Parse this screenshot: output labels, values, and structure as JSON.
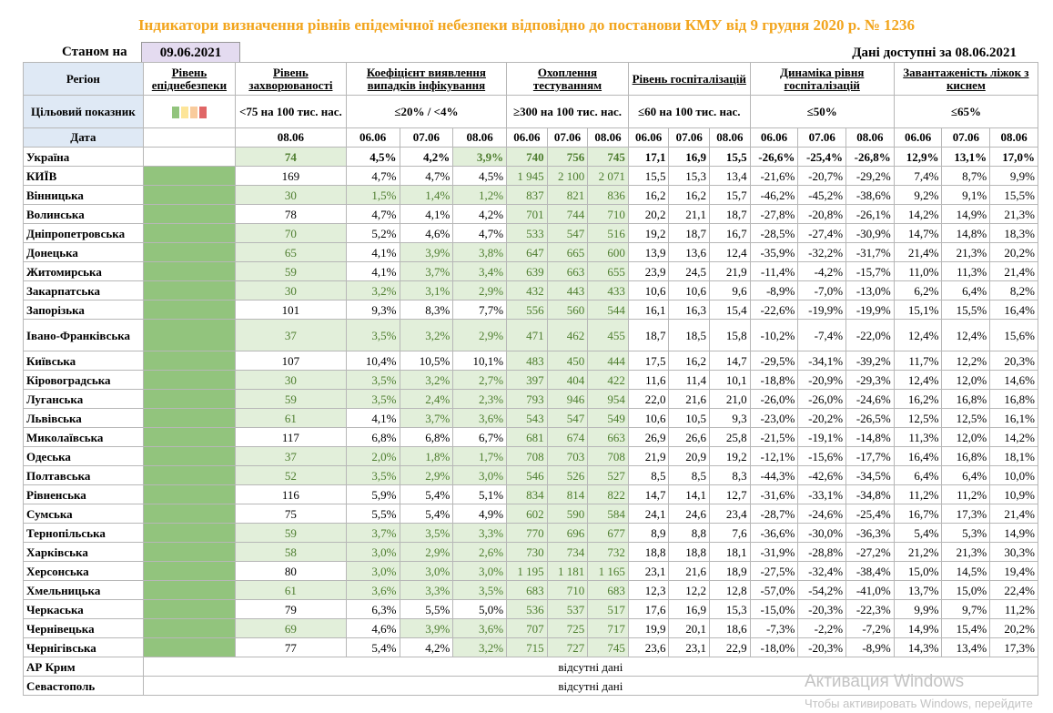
{
  "title": "Індикатори визначення рівнів епідемічної небезпеки відповідно до постанови КМУ від 9 грудня 2020 р. № 1236",
  "as_of_label": "Станом на",
  "as_of_date": "09.06.2021",
  "available_label": "Дані доступні за  08.06.2021",
  "headers": {
    "region": "Регіон",
    "level": "Рівень епіднебезпеки",
    "incidence": "Рівень захворюваності",
    "detection": "Коефіцієнт виявлення випадків інфікування",
    "testing": "Охоплення тестуванням",
    "hosp": "Рівень госпіталізацій",
    "hosp_dyn": "Динаміка рівня госпіталізацій",
    "oxygen": "Завантаженість ліжок з киснем"
  },
  "targets": {
    "label": "Цільовий показник",
    "incidence": "<75 на 100 тис. нас.",
    "detection": "≤20% / <4%",
    "testing": "≥300 на 100 тис. нас.",
    "hosp": "≤60 на 100 тис. нас.",
    "hosp_dyn": "≤50%",
    "oxygen": "≤65%"
  },
  "date_row": {
    "label": "Дата",
    "incidence": "08.06",
    "d1": "06.06",
    "d2": "07.06",
    "d3": "08.06"
  },
  "level_colors": [
    "#92c47d",
    "#fde599",
    "#f9cb9c",
    "#e06666"
  ],
  "rows": [
    {
      "region": "Україна",
      "inc": "74",
      "det": [
        "4,5%",
        "4,2%",
        "3,9%"
      ],
      "test": [
        "740",
        "756",
        "745"
      ],
      "hosp": [
        "17,1",
        "16,9",
        "15,5"
      ],
      "dyn": [
        "-26,6%",
        "-25,4%",
        "-26,8%"
      ],
      "oxy": [
        "12,9%",
        "13,1%",
        "17,0%"
      ]
    },
    {
      "region": "КИЇВ",
      "inc": "169",
      "det": [
        "4,7%",
        "4,7%",
        "4,5%"
      ],
      "test": [
        "1 945",
        "2 100",
        "2 071"
      ],
      "hosp": [
        "15,5",
        "15,3",
        "13,4"
      ],
      "dyn": [
        "-21,6%",
        "-20,7%",
        "-29,2%"
      ],
      "oxy": [
        "7,4%",
        "8,7%",
        "9,9%"
      ]
    },
    {
      "region": "Вінницька",
      "inc": "30",
      "det": [
        "1,5%",
        "1,4%",
        "1,2%"
      ],
      "test": [
        "837",
        "821",
        "836"
      ],
      "hosp": [
        "16,2",
        "16,2",
        "15,7"
      ],
      "dyn": [
        "-46,2%",
        "-45,2%",
        "-38,6%"
      ],
      "oxy": [
        "9,2%",
        "9,1%",
        "15,5%"
      ]
    },
    {
      "region": "Волинська",
      "inc": "78",
      "det": [
        "4,7%",
        "4,1%",
        "4,2%"
      ],
      "test": [
        "701",
        "744",
        "710"
      ],
      "hosp": [
        "20,2",
        "21,1",
        "18,7"
      ],
      "dyn": [
        "-27,8%",
        "-20,8%",
        "-26,1%"
      ],
      "oxy": [
        "14,2%",
        "14,9%",
        "21,3%"
      ]
    },
    {
      "region": "Дніпропетровська",
      "inc": "70",
      "det": [
        "5,2%",
        "4,6%",
        "4,7%"
      ],
      "test": [
        "533",
        "547",
        "516"
      ],
      "hosp": [
        "19,2",
        "18,7",
        "16,7"
      ],
      "dyn": [
        "-28,5%",
        "-27,4%",
        "-30,9%"
      ],
      "oxy": [
        "14,7%",
        "14,8%",
        "18,3%"
      ]
    },
    {
      "region": "Донецька",
      "inc": "65",
      "det": [
        "4,1%",
        "3,9%",
        "3,8%"
      ],
      "test": [
        "647",
        "665",
        "600"
      ],
      "hosp": [
        "13,9",
        "13,6",
        "12,4"
      ],
      "dyn": [
        "-35,9%",
        "-32,2%",
        "-31,7%"
      ],
      "oxy": [
        "21,4%",
        "21,3%",
        "20,2%"
      ]
    },
    {
      "region": "Житомирська",
      "inc": "59",
      "det": [
        "4,1%",
        "3,7%",
        "3,4%"
      ],
      "test": [
        "639",
        "663",
        "655"
      ],
      "hosp": [
        "23,9",
        "24,5",
        "21,9"
      ],
      "dyn": [
        "-11,4%",
        "-4,2%",
        "-15,7%"
      ],
      "oxy": [
        "11,0%",
        "11,3%",
        "21,4%"
      ]
    },
    {
      "region": "Закарпатська",
      "inc": "30",
      "det": [
        "3,2%",
        "3,1%",
        "2,9%"
      ],
      "test": [
        "432",
        "443",
        "433"
      ],
      "hosp": [
        "10,6",
        "10,6",
        "9,6"
      ],
      "dyn": [
        "-8,9%",
        "-7,0%",
        "-13,0%"
      ],
      "oxy": [
        "6,2%",
        "6,4%",
        "8,2%"
      ]
    },
    {
      "region": "Запорізька",
      "inc": "101",
      "det": [
        "9,3%",
        "8,3%",
        "7,7%"
      ],
      "test": [
        "556",
        "560",
        "544"
      ],
      "hosp": [
        "16,1",
        "16,3",
        "15,4"
      ],
      "dyn": [
        "-22,6%",
        "-19,9%",
        "-19,9%"
      ],
      "oxy": [
        "15,1%",
        "15,5%",
        "16,4%"
      ]
    },
    {
      "region": "Івано-Франківська",
      "inc": "37",
      "det": [
        "3,5%",
        "3,2%",
        "2,9%"
      ],
      "test": [
        "471",
        "462",
        "455"
      ],
      "hosp": [
        "18,7",
        "18,5",
        "15,8"
      ],
      "dyn": [
        "-10,2%",
        "-7,4%",
        "-22,0%"
      ],
      "oxy": [
        "12,4%",
        "12,4%",
        "15,6%"
      ]
    },
    {
      "region": "Київська",
      "inc": "107",
      "det": [
        "10,4%",
        "10,5%",
        "10,1%"
      ],
      "test": [
        "483",
        "450",
        "444"
      ],
      "hosp": [
        "17,5",
        "16,2",
        "14,7"
      ],
      "dyn": [
        "-29,5%",
        "-34,1%",
        "-39,2%"
      ],
      "oxy": [
        "11,7%",
        "12,2%",
        "20,3%"
      ]
    },
    {
      "region": "Кіровоградська",
      "inc": "30",
      "det": [
        "3,5%",
        "3,2%",
        "2,7%"
      ],
      "test": [
        "397",
        "404",
        "422"
      ],
      "hosp": [
        "11,6",
        "11,4",
        "10,1"
      ],
      "dyn": [
        "-18,8%",
        "-20,9%",
        "-29,3%"
      ],
      "oxy": [
        "12,4%",
        "12,0%",
        "14,6%"
      ]
    },
    {
      "region": "Луганська",
      "inc": "59",
      "det": [
        "3,5%",
        "2,4%",
        "2,3%"
      ],
      "test": [
        "793",
        "946",
        "954"
      ],
      "hosp": [
        "22,0",
        "21,6",
        "21,0"
      ],
      "dyn": [
        "-26,0%",
        "-26,0%",
        "-24,6%"
      ],
      "oxy": [
        "16,2%",
        "16,8%",
        "16,8%"
      ]
    },
    {
      "region": "Львівська",
      "inc": "61",
      "det": [
        "4,1%",
        "3,7%",
        "3,6%"
      ],
      "test": [
        "543",
        "547",
        "549"
      ],
      "hosp": [
        "10,6",
        "10,5",
        "9,3"
      ],
      "dyn": [
        "-23,0%",
        "-20,2%",
        "-26,5%"
      ],
      "oxy": [
        "12,5%",
        "12,5%",
        "16,1%"
      ]
    },
    {
      "region": "Миколаївська",
      "inc": "117",
      "det": [
        "6,8%",
        "6,8%",
        "6,7%"
      ],
      "test": [
        "681",
        "674",
        "663"
      ],
      "hosp": [
        "26,9",
        "26,6",
        "25,8"
      ],
      "dyn": [
        "-21,5%",
        "-19,1%",
        "-14,8%"
      ],
      "oxy": [
        "11,3%",
        "12,0%",
        "14,2%"
      ]
    },
    {
      "region": "Одеська",
      "inc": "37",
      "det": [
        "2,0%",
        "1,8%",
        "1,7%"
      ],
      "test": [
        "708",
        "703",
        "708"
      ],
      "hosp": [
        "21,9",
        "20,9",
        "19,2"
      ],
      "dyn": [
        "-12,1%",
        "-15,6%",
        "-17,7%"
      ],
      "oxy": [
        "16,4%",
        "16,8%",
        "18,1%"
      ]
    },
    {
      "region": "Полтавська",
      "inc": "52",
      "det": [
        "3,5%",
        "2,9%",
        "3,0%"
      ],
      "test": [
        "546",
        "526",
        "527"
      ],
      "hosp": [
        "8,5",
        "8,5",
        "8,3"
      ],
      "dyn": [
        "-44,3%",
        "-42,6%",
        "-34,5%"
      ],
      "oxy": [
        "6,4%",
        "6,4%",
        "10,0%"
      ]
    },
    {
      "region": "Рівненська",
      "inc": "116",
      "det": [
        "5,9%",
        "5,4%",
        "5,1%"
      ],
      "test": [
        "834",
        "814",
        "822"
      ],
      "hosp": [
        "14,7",
        "14,1",
        "12,7"
      ],
      "dyn": [
        "-31,6%",
        "-33,1%",
        "-34,8%"
      ],
      "oxy": [
        "11,2%",
        "11,2%",
        "10,9%"
      ]
    },
    {
      "region": "Сумська",
      "inc": "75",
      "det": [
        "5,5%",
        "5,4%",
        "4,9%"
      ],
      "test": [
        "602",
        "590",
        "584"
      ],
      "hosp": [
        "24,1",
        "24,6",
        "23,4"
      ],
      "dyn": [
        "-28,7%",
        "-24,6%",
        "-25,4%"
      ],
      "oxy": [
        "16,7%",
        "17,3%",
        "21,4%"
      ]
    },
    {
      "region": "Тернопільська",
      "inc": "59",
      "det": [
        "3,7%",
        "3,5%",
        "3,3%"
      ],
      "test": [
        "770",
        "696",
        "677"
      ],
      "hosp": [
        "8,9",
        "8,8",
        "7,6"
      ],
      "dyn": [
        "-36,6%",
        "-30,0%",
        "-36,3%"
      ],
      "oxy": [
        "5,4%",
        "5,3%",
        "14,9%"
      ]
    },
    {
      "region": "Харківська",
      "inc": "58",
      "det": [
        "3,0%",
        "2,9%",
        "2,6%"
      ],
      "test": [
        "730",
        "734",
        "732"
      ],
      "hosp": [
        "18,8",
        "18,8",
        "18,1"
      ],
      "dyn": [
        "-31,9%",
        "-28,8%",
        "-27,2%"
      ],
      "oxy": [
        "21,2%",
        "21,3%",
        "30,3%"
      ]
    },
    {
      "region": "Херсонська",
      "inc": "80",
      "det": [
        "3,0%",
        "3,0%",
        "3,0%"
      ],
      "test": [
        "1 195",
        "1 181",
        "1 165"
      ],
      "hosp": [
        "23,1",
        "21,6",
        "18,9"
      ],
      "dyn": [
        "-27,5%",
        "-32,4%",
        "-38,4%"
      ],
      "oxy": [
        "15,0%",
        "14,5%",
        "19,4%"
      ]
    },
    {
      "region": "Хмельницька",
      "inc": "61",
      "det": [
        "3,6%",
        "3,3%",
        "3,5%"
      ],
      "test": [
        "683",
        "710",
        "683"
      ],
      "hosp": [
        "12,3",
        "12,2",
        "12,8"
      ],
      "dyn": [
        "-57,0%",
        "-54,2%",
        "-41,0%"
      ],
      "oxy": [
        "13,7%",
        "15,0%",
        "22,4%"
      ]
    },
    {
      "region": "Черкаська",
      "inc": "79",
      "det": [
        "6,3%",
        "5,5%",
        "5,0%"
      ],
      "test": [
        "536",
        "537",
        "517"
      ],
      "hosp": [
        "17,6",
        "16,9",
        "15,3"
      ],
      "dyn": [
        "-15,0%",
        "-20,3%",
        "-22,3%"
      ],
      "oxy": [
        "9,9%",
        "9,7%",
        "11,2%"
      ]
    },
    {
      "region": "Чернівецька",
      "inc": "69",
      "det": [
        "4,6%",
        "3,9%",
        "3,6%"
      ],
      "test": [
        "707",
        "725",
        "717"
      ],
      "hosp": [
        "19,9",
        "20,1",
        "18,6"
      ],
      "dyn": [
        "-7,3%",
        "-2,2%",
        "-7,2%"
      ],
      "oxy": [
        "14,9%",
        "15,4%",
        "20,2%"
      ]
    },
    {
      "region": "Чернігівська",
      "inc": "77",
      "det": [
        "5,4%",
        "4,2%",
        "3,2%"
      ],
      "test": [
        "715",
        "727",
        "745"
      ],
      "hosp": [
        "23,6",
        "23,1",
        "22,9"
      ],
      "dyn": [
        "-18,0%",
        "-20,3%",
        "-8,9%"
      ],
      "oxy": [
        "14,3%",
        "13,4%",
        "17,3%"
      ]
    }
  ],
  "missing_rows": [
    {
      "region": "АР Крим",
      "note": "відсутні дані"
    },
    {
      "region": "Севастополь",
      "note": "відсутні дані"
    }
  ],
  "watermark": {
    "line1": "Активация Windows",
    "line2": "Чтобы активировать Windows, перейдите"
  }
}
